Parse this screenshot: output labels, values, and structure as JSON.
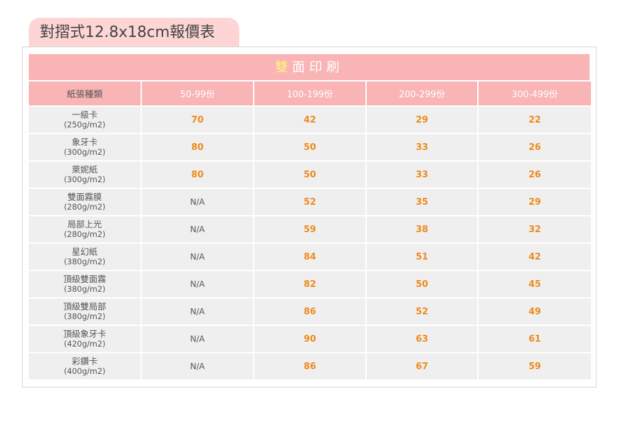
{
  "page_title": "對摺式12.8x18cm報價表",
  "banner": {
    "first_char": "雙",
    "rest": "面印刷"
  },
  "columns": [
    "紙張種類",
    "50-99份",
    "100-199份",
    "200-299份",
    "300-499份"
  ],
  "rows": [
    {
      "paper": "一級卡",
      "weight": "(250g/m2)",
      "prices": [
        "70",
        "42",
        "29",
        "22"
      ]
    },
    {
      "paper": "象牙卡",
      "weight": "(300g/m2)",
      "prices": [
        "80",
        "50",
        "33",
        "26"
      ]
    },
    {
      "paper": "萊妮紙",
      "weight": "(300g/m2)",
      "prices": [
        "80",
        "50",
        "33",
        "26"
      ]
    },
    {
      "paper": "雙面霧膜",
      "weight": "(280g/m2)",
      "prices": [
        "N/A",
        "52",
        "35",
        "29"
      ]
    },
    {
      "paper": "局部上光",
      "weight": "(280g/m2)",
      "prices": [
        "N/A",
        "59",
        "38",
        "32"
      ]
    },
    {
      "paper": "星幻紙",
      "weight": "(380g/m2)",
      "prices": [
        "N/A",
        "84",
        "51",
        "42"
      ]
    },
    {
      "paper": "頂級雙面霧",
      "weight": "(380g/m2)",
      "prices": [
        "N/A",
        "82",
        "50",
        "45"
      ]
    },
    {
      "paper": "頂級雙局部",
      "weight": "(380g/m2)",
      "prices": [
        "N/A",
        "86",
        "52",
        "49"
      ]
    },
    {
      "paper": "頂級象牙卡",
      "weight": "(420g/m2)",
      "prices": [
        "N/A",
        "90",
        "63",
        "61"
      ]
    },
    {
      "paper": "彩鑽卡",
      "weight": "(400g/m2)",
      "prices": [
        "N/A",
        "86",
        "67",
        "59"
      ]
    }
  ],
  "colors": {
    "header_pink": "#f9b4b5",
    "tab_pink": "#fcd5d4",
    "price_orange": "#ee8a1b",
    "banner_highlight": "#fff27a",
    "cell_gray": "#efefef"
  }
}
